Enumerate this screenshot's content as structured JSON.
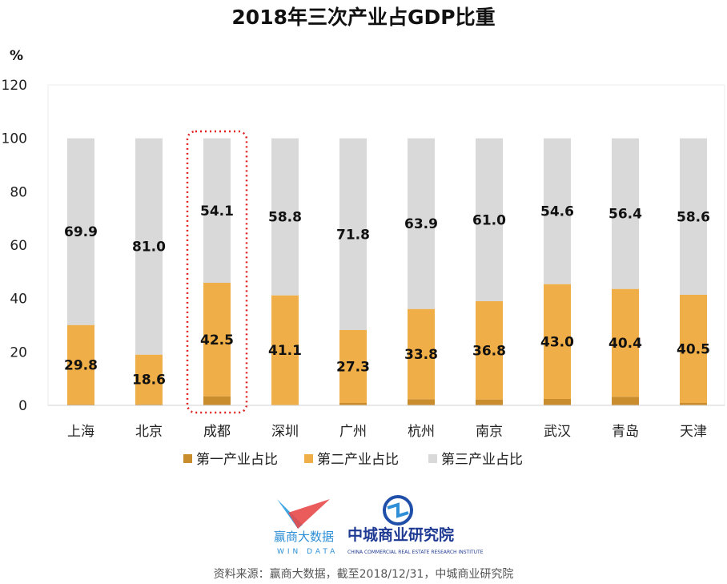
{
  "chart_data": {
    "type": "bar",
    "stacked": true,
    "title": "2018年三次产业占GDP比重",
    "ylabel": "%",
    "ylim": [
      0,
      120
    ],
    "yticks": [
      0,
      20,
      40,
      60,
      80,
      100,
      120
    ],
    "categories": [
      "上海",
      "北京",
      "成都",
      "深圳",
      "广州",
      "杭州",
      "南京",
      "武汉",
      "青岛",
      "天津"
    ],
    "highlighted_category": "成都",
    "series": [
      {
        "name": "第一产业占比",
        "color": "#c98d2e",
        "values": [
          0.3,
          0.4,
          3.4,
          0.1,
          0.9,
          2.3,
          2.2,
          2.4,
          3.2,
          0.9
        ]
      },
      {
        "name": "第二产业占比",
        "color": "#efae47",
        "values": [
          29.8,
          18.6,
          42.5,
          41.1,
          27.3,
          33.8,
          36.8,
          43.0,
          40.4,
          40.5
        ],
        "labels": [
          "29.8",
          "18.6",
          "42.5",
          "41.1",
          "27.3",
          "33.8",
          "36.8",
          "43.0",
          "40.4",
          "40.5"
        ]
      },
      {
        "name": "第三产业占比",
        "color": "#d9d9d9",
        "values": [
          69.9,
          81.0,
          54.1,
          58.8,
          71.8,
          63.9,
          61.0,
          54.6,
          56.4,
          58.6
        ],
        "labels": [
          "69.9",
          "81.0",
          "54.1",
          "58.8",
          "71.8",
          "63.9",
          "61.0",
          "54.6",
          "56.4",
          "58.6"
        ]
      }
    ],
    "legend_position": "bottom"
  },
  "logos": {
    "windata_cn": "赢商大数据",
    "windata_en": "WIN DATA",
    "ccr_cn": "中城商业研究院",
    "ccr_en": "CHINA COMMERCIAL REAL ESTATE RESEARCH INSTITUTE"
  },
  "source": "资料来源：赢商大数据，截至2018/12/31，中城商业研究院"
}
